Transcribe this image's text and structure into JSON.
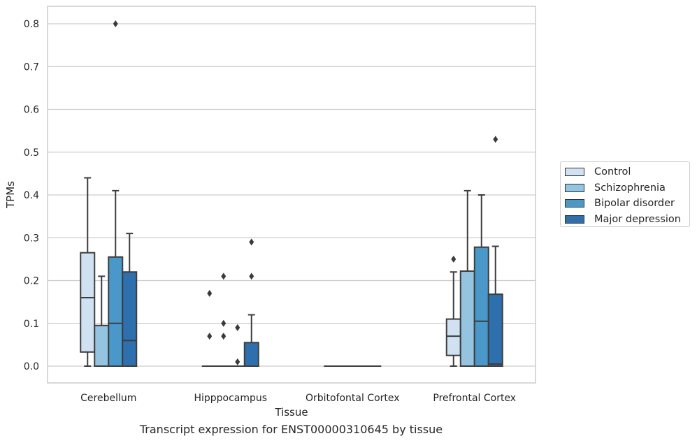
{
  "chart_data": {
    "type": "box",
    "title": "Transcript expression for ENST00000310645 by tissue",
    "xlabel": "Tissue",
    "ylabel": "TPMs",
    "ylim": [
      -0.04,
      0.84
    ],
    "yticks": [
      0.0,
      0.1,
      0.2,
      0.3,
      0.4,
      0.5,
      0.6,
      0.7,
      0.8
    ],
    "ytick_labels": [
      "0.0",
      "0.1",
      "0.2",
      "0.3",
      "0.4",
      "0.5",
      "0.6",
      "0.7",
      "0.8"
    ],
    "grid": true,
    "legend_placement": "outside-right",
    "categories": [
      "Cerebellum",
      "Hipppocampus",
      "Orbitofontal Cortex",
      "Prefrontal Cortex"
    ],
    "series": [
      {
        "name": "Control",
        "color": "#d0e1f2",
        "boxes": [
          {
            "whisker_low": 0.0,
            "q1": 0.033,
            "median": 0.16,
            "q3": 0.265,
            "whisker_high": 0.44,
            "outliers": []
          },
          {
            "whisker_low": 0.0,
            "q1": 0.0,
            "median": 0.0,
            "q3": 0.0,
            "whisker_high": 0.0,
            "outliers": [
              0.07,
              0.17
            ]
          },
          {
            "whisker_low": 0.0,
            "q1": 0.0,
            "median": 0.0,
            "q3": 0.0,
            "whisker_high": 0.0,
            "outliers": []
          },
          {
            "whisker_low": 0.0,
            "q1": 0.025,
            "median": 0.07,
            "q3": 0.11,
            "whisker_high": 0.22,
            "outliers": [
              0.25
            ]
          }
        ]
      },
      {
        "name": "Schizophrenia",
        "color": "#94c4df",
        "boxes": [
          {
            "whisker_low": 0.0,
            "q1": 0.0,
            "median": 0.0,
            "q3": 0.095,
            "whisker_high": 0.21,
            "outliers": []
          },
          {
            "whisker_low": 0.0,
            "q1": 0.0,
            "median": 0.0,
            "q3": 0.0,
            "whisker_high": 0.0,
            "outliers": [
              0.07,
              0.1,
              0.21
            ]
          },
          {
            "whisker_low": 0.0,
            "q1": 0.0,
            "median": 0.0,
            "q3": 0.0,
            "whisker_high": 0.0,
            "outliers": []
          },
          {
            "whisker_low": 0.0,
            "q1": 0.0,
            "median": 0.0,
            "q3": 0.222,
            "whisker_high": 0.41,
            "outliers": []
          }
        ]
      },
      {
        "name": "Bipolar disorder",
        "color": "#4a98c9",
        "boxes": [
          {
            "whisker_low": 0.0,
            "q1": 0.0,
            "median": 0.1,
            "q3": 0.255,
            "whisker_high": 0.41,
            "outliers": [
              0.8
            ]
          },
          {
            "whisker_low": 0.0,
            "q1": 0.0,
            "median": 0.0,
            "q3": 0.0,
            "whisker_high": 0.0,
            "outliers": [
              0.01,
              0.09
            ]
          },
          {
            "whisker_low": 0.0,
            "q1": 0.0,
            "median": 0.0,
            "q3": 0.0,
            "whisker_high": 0.0,
            "outliers": []
          },
          {
            "whisker_low": 0.0,
            "q1": 0.0,
            "median": 0.105,
            "q3": 0.278,
            "whisker_high": 0.4,
            "outliers": []
          }
        ]
      },
      {
        "name": "Major depression",
        "color": "#2e6fae",
        "boxes": [
          {
            "whisker_low": 0.0,
            "q1": 0.0,
            "median": 0.06,
            "q3": 0.22,
            "whisker_high": 0.31,
            "outliers": []
          },
          {
            "whisker_low": 0.0,
            "q1": 0.0,
            "median": 0.0,
            "q3": 0.055,
            "whisker_high": 0.12,
            "outliers": [
              0.21,
              0.29
            ]
          },
          {
            "whisker_low": 0.0,
            "q1": 0.0,
            "median": 0.0,
            "q3": 0.0,
            "whisker_high": 0.0,
            "outliers": []
          },
          {
            "whisker_low": 0.0,
            "q1": 0.0,
            "median": 0.005,
            "q3": 0.168,
            "whisker_high": 0.28,
            "outliers": [
              0.53
            ]
          }
        ]
      }
    ]
  }
}
